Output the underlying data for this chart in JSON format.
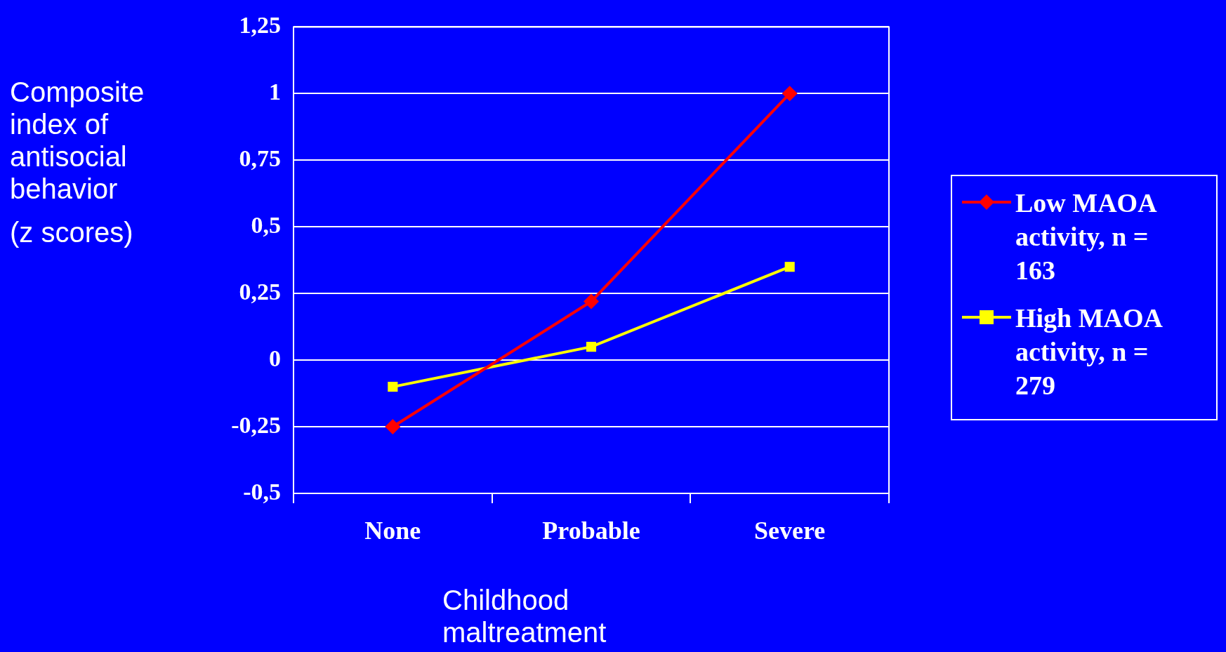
{
  "chart_data": {
    "type": "line",
    "xlabel": "Childhood maltreatment",
    "ylabel": "Composite index of antisocial behavior\n(z scores)",
    "categories": [
      "None",
      "Probable",
      "Severe"
    ],
    "series": [
      {
        "name": "Low MAOA activity, n = 163",
        "color": "#ff0000",
        "marker": "diamond",
        "values": [
          -0.25,
          0.22,
          1
        ]
      },
      {
        "name": "High MAOA activity, n = 279",
        "color": "#ffff00",
        "marker": "square",
        "values": [
          -0.1,
          0.05,
          0.35
        ]
      }
    ],
    "ylim": [
      -0.5,
      1.25
    ],
    "yticks": [
      {
        "value": -0.5,
        "label": "-0,5"
      },
      {
        "value": -0.25,
        "label": "-0,25"
      },
      {
        "value": 0,
        "label": "0"
      },
      {
        "value": 0.25,
        "label": "0,25"
      },
      {
        "value": 0.5,
        "label": "0,5"
      },
      {
        "value": 0.75,
        "label": "0,75"
      },
      {
        "value": 1,
        "label": "1"
      },
      {
        "value": 1.25,
        "label": "1,25"
      }
    ],
    "grid": "y",
    "legend": "right",
    "line_style": "solid"
  }
}
